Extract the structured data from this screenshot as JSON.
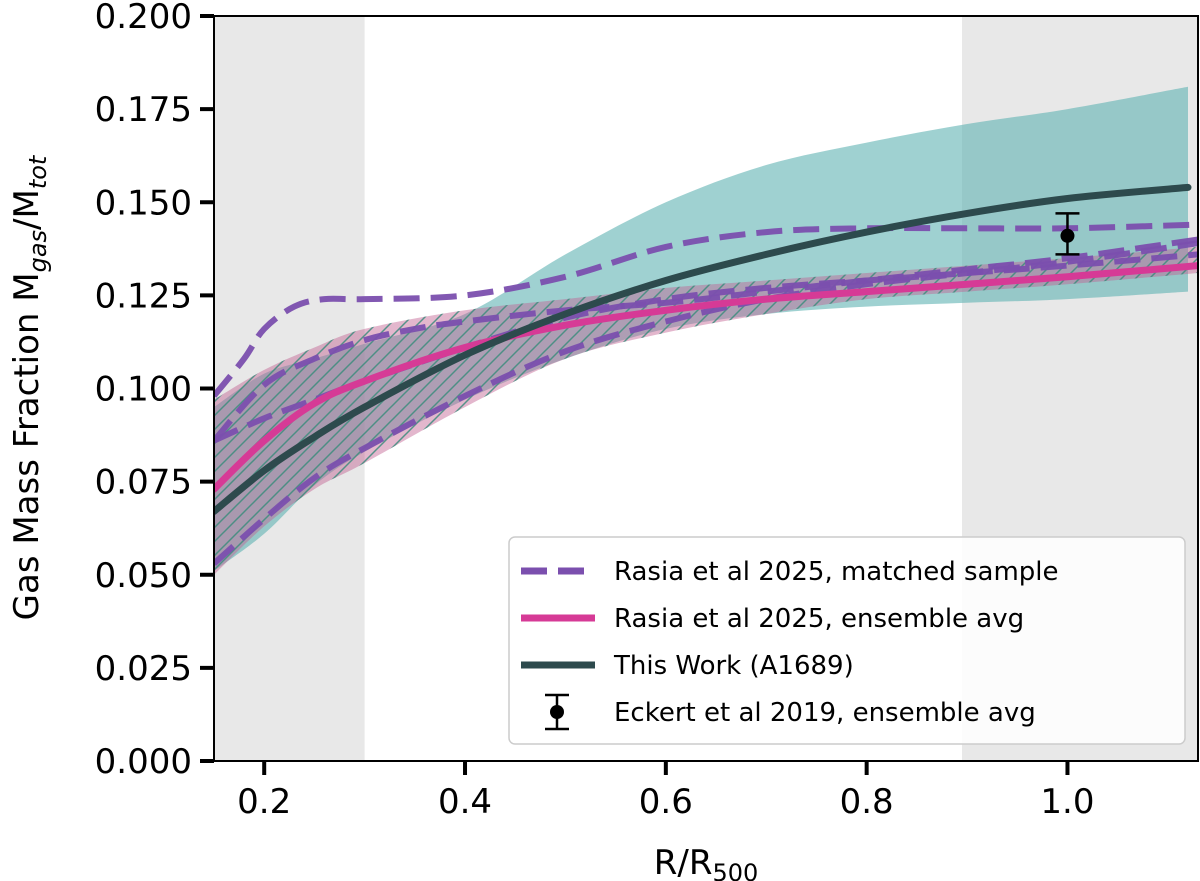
{
  "chart_data": {
    "type": "line",
    "title": "",
    "xlabel": "R/R",
    "xlabel_sub": "500",
    "ylabel_prefix": "Gas Mass Fraction M",
    "ylabel_sub1": "gas",
    "ylabel_slash": "/M",
    "ylabel_sub2": "tot",
    "xlim": [
      0.15,
      1.13
    ],
    "ylim": [
      0.0,
      0.2
    ],
    "x_ticks": [
      0.2,
      0.4,
      0.6,
      0.8,
      1.0
    ],
    "x_tick_labels": [
      "0.2",
      "0.4",
      "0.6",
      "0.8",
      "1.0"
    ],
    "y_ticks": [
      0.0,
      0.025,
      0.05,
      0.075,
      0.1,
      0.125,
      0.15,
      0.175,
      0.2
    ],
    "y_tick_labels": [
      "0.000",
      "0.025",
      "0.050",
      "0.075",
      "0.100",
      "0.125",
      "0.150",
      "0.175",
      "0.200"
    ],
    "grid": false,
    "legend_position": "lower right",
    "shaded_x_regions": [
      {
        "x0": 0.15,
        "x1": 0.3,
        "color": "#e8e8e8"
      },
      {
        "x0": 0.895,
        "x1": 1.13,
        "color": "#e8e8e8"
      }
    ],
    "bands": [
      {
        "key": "this_work_band",
        "color": "#5fb3b3",
        "x": [
          0.15,
          0.2,
          0.25,
          0.3,
          0.4,
          0.5,
          0.6,
          0.7,
          0.8,
          0.9,
          1.0,
          1.12
        ],
        "lower": [
          0.051,
          0.061,
          0.074,
          0.083,
          0.097,
          0.108,
          0.116,
          0.12,
          0.122,
          0.123,
          0.124,
          0.126
        ],
        "upper": [
          0.095,
          0.104,
          0.108,
          0.112,
          0.12,
          0.136,
          0.15,
          0.16,
          0.166,
          0.171,
          0.175,
          0.181
        ]
      },
      {
        "key": "rasia_ensemble_band",
        "color": "#c06090",
        "hatched": true,
        "x": [
          0.15,
          0.2,
          0.25,
          0.3,
          0.4,
          0.5,
          0.6,
          0.7,
          0.8,
          0.9,
          1.0,
          1.13
        ],
        "lower": [
          0.05,
          0.063,
          0.073,
          0.08,
          0.095,
          0.108,
          0.115,
          0.12,
          0.124,
          0.126,
          0.128,
          0.131
        ],
        "upper": [
          0.097,
          0.105,
          0.111,
          0.116,
          0.121,
          0.124,
          0.127,
          0.129,
          0.131,
          0.133,
          0.135,
          0.138
        ]
      }
    ],
    "series": [
      {
        "key": "rasia_matched_1",
        "name": "Rasia et al 2025, matched sample",
        "style": "dashed",
        "color": "#7b4fae",
        "x": [
          0.15,
          0.18,
          0.2,
          0.23,
          0.26,
          0.3,
          0.4,
          0.5,
          0.6,
          0.7,
          0.8,
          0.9,
          1.0,
          1.13
        ],
        "y": [
          0.098,
          0.108,
          0.116,
          0.122,
          0.124,
          0.124,
          0.125,
          0.13,
          0.138,
          0.142,
          0.143,
          0.143,
          0.143,
          0.144
        ]
      },
      {
        "key": "rasia_matched_2",
        "style": "dashed",
        "color": "#7b4fae",
        "x": [
          0.15,
          0.2,
          0.25,
          0.3,
          0.35,
          0.4,
          0.5,
          0.6,
          0.7,
          0.8,
          0.9,
          1.0,
          1.13
        ],
        "y": [
          0.086,
          0.101,
          0.108,
          0.113,
          0.116,
          0.118,
          0.121,
          0.123,
          0.126,
          0.129,
          0.132,
          0.135,
          0.14
        ]
      },
      {
        "key": "rasia_matched_3",
        "style": "dashed",
        "color": "#7b4fae",
        "x": [
          0.15,
          0.2,
          0.25,
          0.3,
          0.4,
          0.5,
          0.6,
          0.7,
          0.8,
          0.9,
          1.0,
          1.13
        ],
        "y": [
          0.086,
          0.092,
          0.097,
          0.102,
          0.111,
          0.119,
          0.124,
          0.127,
          0.129,
          0.131,
          0.133,
          0.136
        ]
      },
      {
        "key": "rasia_matched_4",
        "style": "dashed",
        "color": "#7b4fae",
        "x": [
          0.15,
          0.2,
          0.25,
          0.3,
          0.4,
          0.5,
          0.6,
          0.7,
          0.8,
          0.9,
          1.0,
          1.13
        ],
        "y": [
          0.053,
          0.065,
          0.076,
          0.084,
          0.098,
          0.11,
          0.118,
          0.124,
          0.128,
          0.131,
          0.134,
          0.139
        ]
      },
      {
        "key": "rasia_ensemble",
        "name": "Rasia et al 2025, ensemble avg",
        "style": "solid",
        "color": "#d63a96",
        "x": [
          0.15,
          0.2,
          0.25,
          0.3,
          0.4,
          0.5,
          0.6,
          0.7,
          0.8,
          0.9,
          1.0,
          1.13
        ],
        "y": [
          0.073,
          0.086,
          0.096,
          0.102,
          0.111,
          0.117,
          0.121,
          0.124,
          0.126,
          0.128,
          0.13,
          0.133
        ]
      },
      {
        "key": "this_work",
        "name": "This Work (A1689)",
        "style": "solid",
        "color": "#2d4a4d",
        "x": [
          0.15,
          0.2,
          0.25,
          0.3,
          0.4,
          0.5,
          0.6,
          0.7,
          0.8,
          0.9,
          1.0,
          1.12
        ],
        "y": [
          0.067,
          0.078,
          0.087,
          0.095,
          0.109,
          0.12,
          0.129,
          0.136,
          0.142,
          0.147,
          0.151,
          0.154
        ]
      }
    ],
    "points": [
      {
        "key": "eckert",
        "name": "Eckert et al 2019, ensemble avg",
        "color": "#000000",
        "x": 1.0,
        "y": 0.141,
        "yerr_low": 0.136,
        "yerr_high": 0.147
      }
    ],
    "legend": [
      {
        "series": "rasia_matched_1",
        "label": "Rasia et al 2025, matched sample",
        "kind": "dashed"
      },
      {
        "series": "rasia_ensemble",
        "label": "Rasia et al 2025, ensemble avg",
        "kind": "solid"
      },
      {
        "series": "this_work",
        "label": "This Work (A1689)",
        "kind": "solid"
      },
      {
        "series": "eckert",
        "label": "Eckert et al 2019, ensemble avg",
        "kind": "errorbar"
      }
    ]
  }
}
